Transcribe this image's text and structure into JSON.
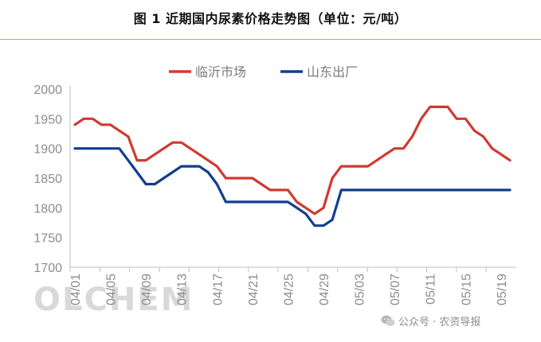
{
  "title": "图 1  近期国内尿素价格走势图（单位：元/吨）",
  "watermark_text": "OLCHEM",
  "source_label": "公众号 · 农资导报",
  "colors": {
    "linyi": "#d03a30",
    "shandong": "#123f8c",
    "title_rule": "#8dc26f",
    "axis": "#bfbfbf"
  },
  "chart_data": {
    "type": "line",
    "title": "图 1  近期国内尿素价格走势图（单位：元/吨）",
    "ylim": [
      1700,
      2000
    ],
    "yticks": [
      1700,
      1750,
      1800,
      1850,
      1900,
      1950,
      2000
    ],
    "xtick_labels": [
      "04/01",
      "04/05",
      "04/09",
      "04/13",
      "04/17",
      "04/21",
      "04/25",
      "04/29",
      "05/03",
      "05/07",
      "05/11",
      "05/15",
      "05/19"
    ],
    "grid": false,
    "legend_position": "top-center",
    "series": [
      {
        "name": "临沂市场",
        "color": "#d03a30",
        "values": [
          1940,
          1950,
          1950,
          1940,
          1940,
          1930,
          1920,
          1880,
          1880,
          1890,
          1900,
          1910,
          1910,
          1900,
          1890,
          1880,
          1870,
          1850,
          1850,
          1850,
          1850,
          1840,
          1830,
          1830,
          1830,
          1810,
          1800,
          1790,
          1800,
          1850,
          1870,
          1870,
          1870,
          1870,
          1880,
          1890,
          1900,
          1900,
          1920,
          1950,
          1970,
          1970,
          1970,
          1950,
          1950,
          1930,
          1920,
          1900,
          1890,
          1880
        ]
      },
      {
        "name": "山东出厂",
        "color": "#123f8c",
        "values": [
          1900,
          1900,
          1900,
          1900,
          1900,
          1900,
          1880,
          1860,
          1840,
          1840,
          1850,
          1860,
          1870,
          1870,
          1870,
          1860,
          1840,
          1810,
          1810,
          1810,
          1810,
          1810,
          1810,
          1810,
          1810,
          1800,
          1790,
          1770,
          1770,
          1780,
          1830,
          1830,
          1830,
          1830,
          1830,
          1830,
          1830,
          1830,
          1830,
          1830,
          1830,
          1830,
          1830,
          1830,
          1830,
          1830,
          1830,
          1830,
          1830,
          1830
        ]
      }
    ]
  }
}
